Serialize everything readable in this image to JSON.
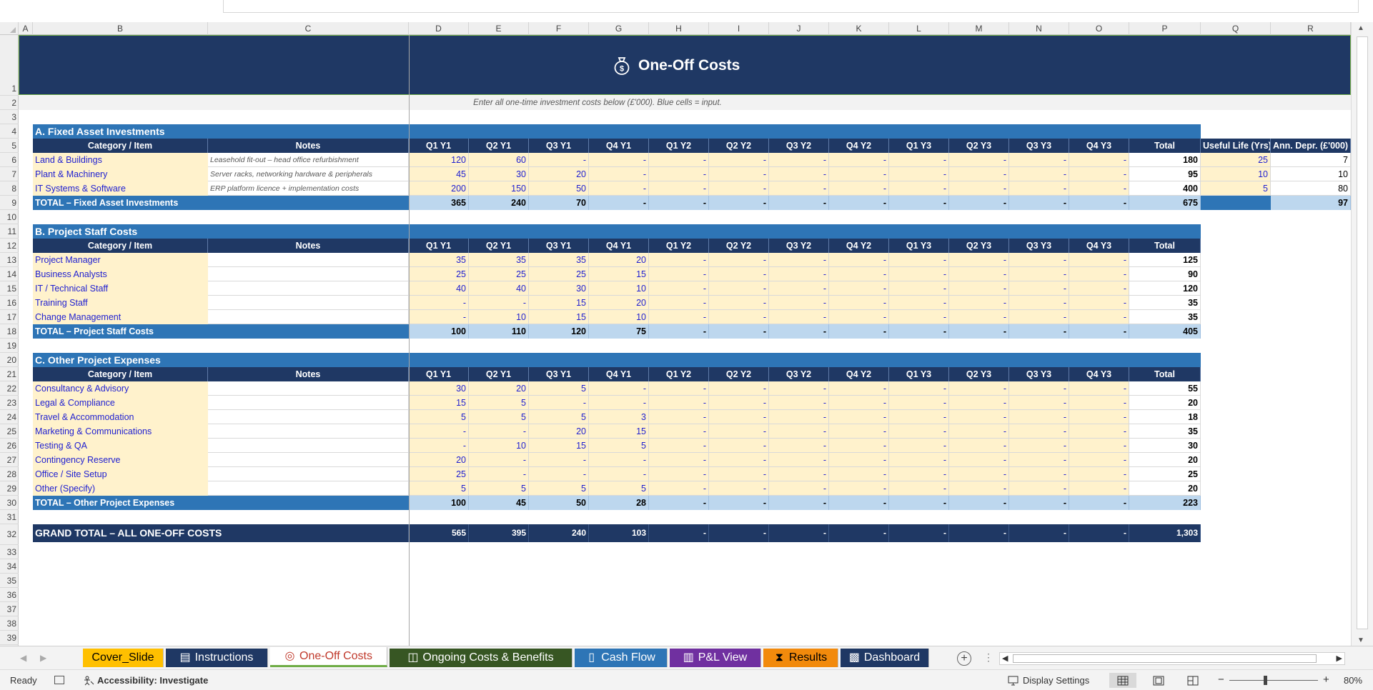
{
  "sheet": {
    "columns": [
      "A",
      "B",
      "C",
      "D",
      "E",
      "F",
      "G",
      "H",
      "I",
      "J",
      "K",
      "L",
      "M",
      "N",
      "O",
      "P",
      "Q",
      "R"
    ],
    "rows": [
      "1",
      "2",
      "3",
      "4",
      "5",
      "6",
      "7",
      "8",
      "9",
      "10",
      "11",
      "12",
      "13",
      "14",
      "15",
      "16",
      "17",
      "18",
      "19",
      "20",
      "21",
      "22",
      "23",
      "24",
      "25",
      "26",
      "27",
      "28",
      "29",
      "30",
      "31",
      "32",
      "33",
      "34",
      "35",
      "36",
      "37",
      "38",
      "39"
    ],
    "title": "One-Off Costs",
    "subtitle": "Enter all one-time investment costs below (£'000). Blue cells = input.",
    "header_item": "Category / Item",
    "header_notes": "Notes",
    "periods": [
      "Q1 Y1",
      "Q2 Y1",
      "Q3 Y1",
      "Q4 Y1",
      "Q1 Y2",
      "Q2 Y2",
      "Q3 Y2",
      "Q4 Y2",
      "Q1 Y3",
      "Q2 Y3",
      "Q3 Y3",
      "Q4 Y3"
    ],
    "header_total": "Total",
    "header_life": "Useful Life (Yrs)",
    "header_depr": "Ann. Depr. (£'000)"
  },
  "sections": [
    {
      "title": "A.  Fixed Asset Investments",
      "has_depr": true,
      "items": [
        {
          "label": "Land & Buildings",
          "note": "Leasehold fit-out – head office refurbishment",
          "values": [
            "120",
            "60",
            "-",
            "-",
            "-",
            "-",
            "-",
            "-",
            "-",
            "-",
            "-",
            "-"
          ],
          "total": "180",
          "life": "25",
          "depr": "7"
        },
        {
          "label": "Plant & Machinery",
          "note": "Server racks, networking hardware & peripherals",
          "values": [
            "45",
            "30",
            "20",
            "-",
            "-",
            "-",
            "-",
            "-",
            "-",
            "-",
            "-",
            "-"
          ],
          "total": "95",
          "life": "10",
          "depr": "10"
        },
        {
          "label": "IT Systems & Software",
          "note": "ERP platform licence + implementation costs",
          "values": [
            "200",
            "150",
            "50",
            "-",
            "-",
            "-",
            "-",
            "-",
            "-",
            "-",
            "-",
            "-"
          ],
          "total": "400",
          "life": "5",
          "depr": "80"
        }
      ],
      "total": {
        "label": "TOTAL – Fixed Asset Investments",
        "values": [
          "365",
          "240",
          "70",
          "-",
          "-",
          "-",
          "-",
          "-",
          "-",
          "-",
          "-",
          "-"
        ],
        "total": "675",
        "depr": "97"
      }
    },
    {
      "title": "B.  Project Staff Costs",
      "has_depr": false,
      "items": [
        {
          "label": "Project Manager",
          "note": "",
          "values": [
            "35",
            "35",
            "35",
            "20",
            "-",
            "-",
            "-",
            "-",
            "-",
            "-",
            "-",
            "-"
          ],
          "total": "125"
        },
        {
          "label": "Business Analysts",
          "note": "",
          "values": [
            "25",
            "25",
            "25",
            "15",
            "-",
            "-",
            "-",
            "-",
            "-",
            "-",
            "-",
            "-"
          ],
          "total": "90"
        },
        {
          "label": "IT / Technical Staff",
          "note": "",
          "values": [
            "40",
            "40",
            "30",
            "10",
            "-",
            "-",
            "-",
            "-",
            "-",
            "-",
            "-",
            "-"
          ],
          "total": "120"
        },
        {
          "label": "Training Staff",
          "note": "",
          "values": [
            "-",
            "-",
            "15",
            "20",
            "-",
            "-",
            "-",
            "-",
            "-",
            "-",
            "-",
            "-"
          ],
          "total": "35"
        },
        {
          "label": "Change Management",
          "note": "",
          "values": [
            "-",
            "10",
            "15",
            "10",
            "-",
            "-",
            "-",
            "-",
            "-",
            "-",
            "-",
            "-"
          ],
          "total": "35"
        }
      ],
      "total": {
        "label": "TOTAL – Project Staff Costs",
        "values": [
          "100",
          "110",
          "120",
          "75",
          "-",
          "-",
          "-",
          "-",
          "-",
          "-",
          "-",
          "-"
        ],
        "total": "405"
      }
    },
    {
      "title": "C.  Other Project Expenses",
      "has_depr": false,
      "items": [
        {
          "label": "Consultancy & Advisory",
          "note": "",
          "values": [
            "30",
            "20",
            "5",
            "-",
            "-",
            "-",
            "-",
            "-",
            "-",
            "-",
            "-",
            "-"
          ],
          "total": "55"
        },
        {
          "label": "Legal & Compliance",
          "note": "",
          "values": [
            "15",
            "5",
            "-",
            "-",
            "-",
            "-",
            "-",
            "-",
            "-",
            "-",
            "-",
            "-"
          ],
          "total": "20"
        },
        {
          "label": "Travel & Accommodation",
          "note": "",
          "values": [
            "5",
            "5",
            "5",
            "3",
            "-",
            "-",
            "-",
            "-",
            "-",
            "-",
            "-",
            "-"
          ],
          "total": "18"
        },
        {
          "label": "Marketing & Communications",
          "note": "",
          "values": [
            "-",
            "-",
            "20",
            "15",
            "-",
            "-",
            "-",
            "-",
            "-",
            "-",
            "-",
            "-"
          ],
          "total": "35"
        },
        {
          "label": "Testing & QA",
          "note": "",
          "values": [
            "-",
            "10",
            "15",
            "5",
            "-",
            "-",
            "-",
            "-",
            "-",
            "-",
            "-",
            "-"
          ],
          "total": "30"
        },
        {
          "label": "Contingency Reserve",
          "note": "",
          "values": [
            "20",
            "-",
            "-",
            "-",
            "-",
            "-",
            "-",
            "-",
            "-",
            "-",
            "-",
            "-"
          ],
          "total": "20"
        },
        {
          "label": "Office / Site Setup",
          "note": "",
          "values": [
            "25",
            "-",
            "-",
            "-",
            "-",
            "-",
            "-",
            "-",
            "-",
            "-",
            "-",
            "-"
          ],
          "total": "25"
        },
        {
          "label": "Other (Specify)",
          "note": "",
          "values": [
            "5",
            "5",
            "5",
            "5",
            "-",
            "-",
            "-",
            "-",
            "-",
            "-",
            "-",
            "-"
          ],
          "total": "20"
        }
      ],
      "total": {
        "label": "TOTAL – Other Project Expenses",
        "values": [
          "100",
          "45",
          "50",
          "28",
          "-",
          "-",
          "-",
          "-",
          "-",
          "-",
          "-",
          "-"
        ],
        "total": "223"
      }
    }
  ],
  "grand_total": {
    "label": "GRAND TOTAL – ALL ONE-OFF COSTS",
    "values": [
      "565",
      "395",
      "240",
      "103",
      "-",
      "-",
      "-",
      "-",
      "-",
      "-",
      "-",
      "-"
    ],
    "total": "1,303"
  },
  "tabs": [
    {
      "label": "Cover_Slide",
      "icon": "",
      "bg": "#ffc000",
      "fg": "#000000",
      "active": false
    },
    {
      "label": "Instructions",
      "icon": "clipboard-icon",
      "bg": "#1f3864",
      "fg": "#ffffff",
      "active": false
    },
    {
      "label": "One-Off Costs",
      "icon": "money-bag-icon",
      "bg": "#ffffff",
      "fg": "#c0392b",
      "active": true
    },
    {
      "label": "Ongoing Costs & Benefits",
      "icon": "chart-icon",
      "bg": "#375623",
      "fg": "#ffffff",
      "active": false
    },
    {
      "label": "Cash Flow",
      "icon": "book-icon",
      "bg": "#2e75b6",
      "fg": "#ffffff",
      "active": false
    },
    {
      "label": "P&L View",
      "icon": "bar-chart-icon",
      "bg": "#7030a0",
      "fg": "#ffffff",
      "active": false
    },
    {
      "label": "Results",
      "icon": "hourglass-icon",
      "bg": "#f28a0c",
      "fg": "#000000",
      "active": false
    },
    {
      "label": "Dashboard",
      "icon": "dashboard-icon",
      "bg": "#1f3864",
      "fg": "#ffffff",
      "active": false
    }
  ],
  "status": {
    "ready": "Ready",
    "accessibility": "Accessibility: Investigate",
    "display_settings": "Display Settings",
    "zoom": "80%"
  }
}
